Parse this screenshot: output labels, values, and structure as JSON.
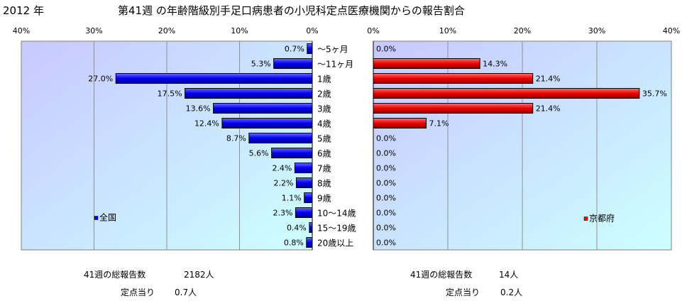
{
  "header": {
    "year": "2012 年",
    "title": "第41週 の年齢階級別手足口病患者の小児科定点医療機関からの報告割合"
  },
  "chart_data": [
    {
      "type": "bar",
      "orientation": "horizontal",
      "direction": "right-to-left",
      "xlim": [
        0,
        40
      ],
      "tick_labels": [
        "40%",
        "30%",
        "20%",
        "10%",
        "0%"
      ],
      "categories": [
        "〜5ヶ月",
        "〜11ヶ月",
        "1歳",
        "2歳",
        "3歳",
        "4歳",
        "5歳",
        "6歳",
        "7歳",
        "8歳",
        "9歳",
        "10〜14歳",
        "15〜19歳",
        "20歳以上"
      ],
      "series": [
        {
          "name": "全国",
          "color": "#0000ee",
          "values": [
            0.7,
            5.3,
            27.0,
            17.5,
            13.6,
            12.4,
            8.7,
            5.6,
            2.4,
            2.2,
            1.1,
            2.3,
            0.4,
            0.8
          ],
          "labels": [
            "0.7%",
            "5.3%",
            "27.0%",
            "17.5%",
            "13.6%",
            "12.4%",
            "8.7%",
            "5.6%",
            "2.4%",
            "2.2%",
            "1.1%",
            "2.3%",
            "0.4%",
            "0.8%"
          ]
        }
      ],
      "legend_position": "bottom-left",
      "grid": true
    },
    {
      "type": "bar",
      "orientation": "horizontal",
      "direction": "left-to-right",
      "xlim": [
        0,
        40
      ],
      "tick_labels": [
        "0%",
        "10%",
        "20%",
        "30%",
        "40%"
      ],
      "categories": [
        "〜5ヶ月",
        "〜11ヶ月",
        "1歳",
        "2歳",
        "3歳",
        "4歳",
        "5歳",
        "6歳",
        "7歳",
        "8歳",
        "9歳",
        "10〜14歳",
        "15〜19歳",
        "20歳以上"
      ],
      "series": [
        {
          "name": "京都府",
          "color": "#ee0000",
          "values": [
            0.0,
            14.3,
            21.4,
            35.7,
            21.4,
            7.1,
            0.0,
            0.0,
            0.0,
            0.0,
            0.0,
            0.0,
            0.0,
            0.0
          ],
          "labels": [
            "0.0%",
            "14.3%",
            "21.4%",
            "35.7%",
            "21.4%",
            "7.1%",
            "0.0%",
            "0.0%",
            "0.0%",
            "0.0%",
            "0.0%",
            "0.0%",
            "0.0%",
            "0.0%"
          ]
        }
      ],
      "legend_position": "bottom-right",
      "grid": true
    }
  ],
  "colors": {
    "plot_background_top": "#c8c8ff",
    "plot_background_bottom": "#ccffff"
  },
  "footer": {
    "national": {
      "reports_label": "41週の総報告数",
      "reports_value": "2182人",
      "per_site_label": "定点当り",
      "per_site_value": "0.7人"
    },
    "kyoto": {
      "reports_label": "41週の総報告数",
      "reports_value": "14人",
      "per_site_label": "定点当り",
      "per_site_value": "0.2人"
    }
  }
}
